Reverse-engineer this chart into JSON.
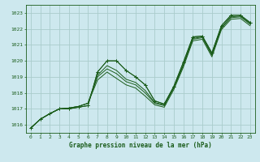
{
  "xlabel": "Graphe pression niveau de la mer (hPa)",
  "x_ticks": [
    0,
    1,
    2,
    3,
    4,
    5,
    6,
    7,
    8,
    9,
    10,
    11,
    12,
    13,
    14,
    15,
    16,
    17,
    18,
    19,
    20,
    21,
    22,
    23
  ],
  "ylim": [
    1015.5,
    1023.5
  ],
  "yticks": [
    1016,
    1017,
    1018,
    1019,
    1020,
    1021,
    1022,
    1023
  ],
  "bg_color": "#cde8ee",
  "grid_color": "#aacccc",
  "line_color": "#1a5c1a",
  "lines_with_markers": [
    [
      1015.8,
      1016.35,
      1016.7,
      1017.0,
      1017.0,
      1017.1,
      1017.2,
      1019.3,
      1020.0,
      1020.0,
      1019.4,
      1019.0,
      1018.5,
      1017.5,
      1017.3,
      1018.4,
      1019.9,
      1021.5,
      1021.55,
      1020.5,
      1022.2,
      1022.85,
      1022.85,
      1022.4
    ],
    [
      1015.8,
      1016.35,
      1016.7,
      1017.0,
      1017.0,
      1017.1,
      1017.2,
      1019.3,
      1020.0,
      1020.0,
      1019.4,
      1019.0,
      1018.5,
      1017.5,
      1017.3,
      1018.4,
      1019.9,
      1021.5,
      1021.55,
      1020.5,
      1022.2,
      1022.85,
      1022.85,
      1022.4
    ]
  ],
  "lines_plain": [
    [
      1015.8,
      1016.35,
      1016.7,
      1017.0,
      1017.05,
      1017.15,
      1017.35,
      1019.1,
      1019.7,
      1019.4,
      1018.85,
      1018.65,
      1018.15,
      1017.4,
      1017.25,
      1018.35,
      1019.75,
      1021.4,
      1021.5,
      1020.4,
      1022.1,
      1022.75,
      1022.8,
      1022.35
    ],
    [
      1015.8,
      1016.35,
      1016.7,
      1017.0,
      1017.05,
      1017.15,
      1017.35,
      1019.0,
      1019.5,
      1019.2,
      1018.7,
      1018.5,
      1018.0,
      1017.35,
      1017.2,
      1018.3,
      1019.7,
      1021.35,
      1021.45,
      1020.35,
      1022.05,
      1022.7,
      1022.75,
      1022.3
    ],
    [
      1015.8,
      1016.35,
      1016.7,
      1017.0,
      1017.05,
      1017.15,
      1017.35,
      1018.8,
      1019.3,
      1018.9,
      1018.5,
      1018.3,
      1017.8,
      1017.25,
      1017.1,
      1018.2,
      1019.6,
      1021.25,
      1021.35,
      1020.25,
      1021.95,
      1022.6,
      1022.65,
      1022.2
    ]
  ]
}
